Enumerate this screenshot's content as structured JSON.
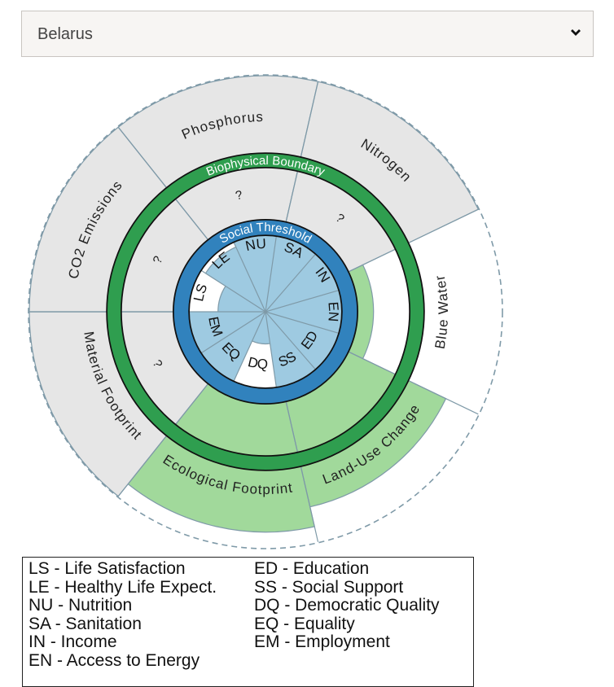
{
  "country_select": {
    "value": "Belarus",
    "icon": "chevron-down-icon"
  },
  "chart_data": {
    "type": "doughnut",
    "boundary_label": "Biophysical Boundary",
    "threshold_label": "Social Threshold",
    "ecological": [
      {
        "name": "Phosphorus",
        "value": null,
        "label": "?"
      },
      {
        "name": "Nitrogen",
        "value": null,
        "label": "?"
      },
      {
        "name": "Blue Water",
        "value": 0.27
      },
      {
        "name": "Land-Use Change",
        "value": 1.82
      },
      {
        "name": "Ecological Footprint",
        "value": 2.16
      },
      {
        "name": "Material Footprint",
        "value": null,
        "label": "?"
      },
      {
        "name": "CO2 Emissions",
        "value": null,
        "label": "?"
      }
    ],
    "social": [
      {
        "code": "LS",
        "value": 0.62
      },
      {
        "code": "LE",
        "value": 0.93
      },
      {
        "code": "NU",
        "value": 1.0
      },
      {
        "code": "SA",
        "value": 1.0
      },
      {
        "code": "IN",
        "value": 1.0
      },
      {
        "code": "EN",
        "value": 1.0
      },
      {
        "code": "ED",
        "value": 1.0
      },
      {
        "code": "SS",
        "value": 1.0
      },
      {
        "code": "DQ",
        "value": 0.42
      },
      {
        "code": "EQ",
        "value": 1.0
      },
      {
        "code": "EM",
        "value": 1.0
      }
    ],
    "colors": {
      "green_ring": "#2f9e4f",
      "green_fill": "#a1d99b",
      "blue_ring": "#3182bd",
      "blue_fill": "#9ecae1",
      "unknown": "#e6e6e6",
      "divider": "#7f9aa8"
    }
  },
  "legend": {
    "left": [
      "LS - Life Satisfaction",
      "LE - Healthy Life Expect.",
      "NU - Nutrition",
      "SA - Sanitation",
      "IN - Income",
      "EN - Access to Energy"
    ],
    "right": [
      "ED - Education",
      "SS - Social Support",
      "DQ - Democratic Quality",
      "EQ - Equality",
      "EM - Employment"
    ]
  }
}
